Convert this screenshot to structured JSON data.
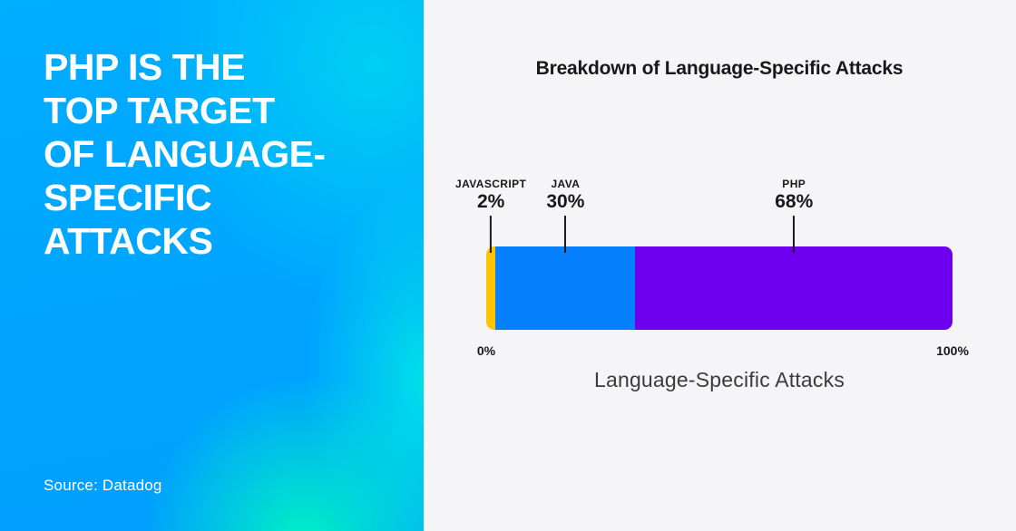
{
  "left_panel": {
    "title_lines": [
      "PHP IS THE",
      "TOP TARGET",
      "OF LANGUAGE-",
      "SPECIFIC",
      "ATTACKS"
    ],
    "source": "Source: Datadog",
    "gradient_colors": {
      "azure": "#00A6FF",
      "cyan": "#00D3F3",
      "green": "#00F6C3"
    }
  },
  "chart": {
    "title": "Breakdown of Language-Specific Attacks",
    "xlabel": "Language-Specific Attacks",
    "axis_start_label": "0%",
    "axis_end_label": "100%",
    "segments": [
      {
        "label": "JAVASCRIPT",
        "value_label": "2%",
        "value": 2,
        "color": "#FFC400"
      },
      {
        "label": "JAVA",
        "value_label": "30%",
        "value": 30,
        "color": "#0680FC"
      },
      {
        "label": "PHP",
        "value_label": "68%",
        "value": 68,
        "color": "#6E00F0"
      }
    ]
  },
  "chart_data": {
    "type": "bar",
    "orientation": "horizontal-stacked",
    "title": "Breakdown of Language-Specific Attacks",
    "xlabel": "Language-Specific Attacks",
    "xlim": [
      0,
      100
    ],
    "x_tick_labels": [
      "0%",
      "100%"
    ],
    "categories": [
      "JAVASCRIPT",
      "JAVA",
      "PHP"
    ],
    "values": [
      2,
      30,
      68
    ],
    "unit": "%",
    "colors": [
      "#FFC400",
      "#0680FC",
      "#6E00F0"
    ],
    "legend": "none",
    "grid": false,
    "annotation_style": "labels-above-with-leader-lines",
    "source": "Source: Datadog"
  }
}
